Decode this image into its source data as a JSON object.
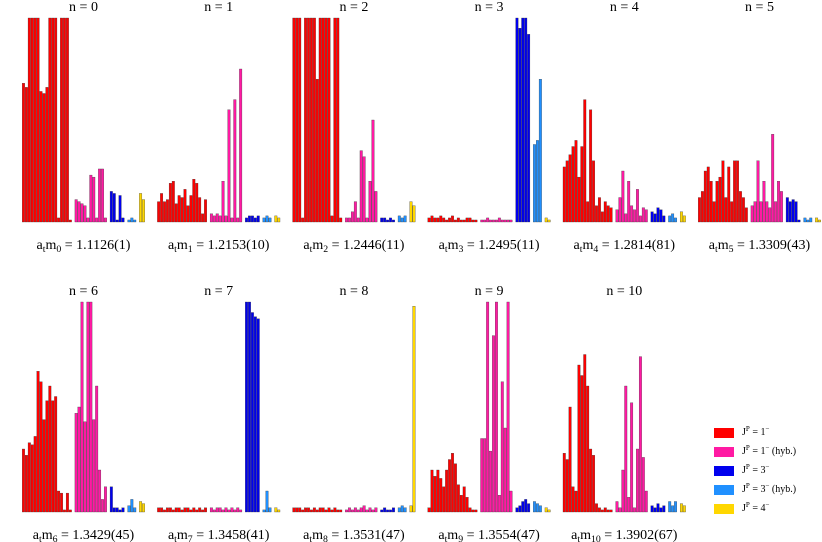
{
  "legend": [
    {
      "name": "J^P = 1^−",
      "color": "#ff0000"
    },
    {
      "name": "J^P = 1^− (hyb.)",
      "color": "#ff1aa3"
    },
    {
      "name": "J^P = 3^−",
      "color": "#0000ee"
    },
    {
      "name": "J^P = 3^− (hyb.)",
      "color": "#2090ff"
    },
    {
      "name": "J^P = 4^−",
      "color": "#ffd700"
    }
  ],
  "chart_data": [
    {
      "type": "bar",
      "title": "n = 0",
      "label": "a_tm_0 = 1.1126(1)",
      "ylim": [
        0,
        1
      ],
      "groups": [
        [
          0.68,
          0.66,
          1,
          1,
          1,
          1,
          0.64,
          0.63,
          0.66,
          1,
          1,
          1,
          0.02,
          1,
          1,
          1,
          0.01
        ],
        [
          0.11,
          0.1,
          0.09,
          0.08,
          0.02,
          0.23,
          0.22,
          0.02,
          0.26,
          0.26,
          0.02
        ],
        [
          0.15,
          0.14,
          0.01,
          0.13,
          0.02
        ],
        [
          0.01,
          0.02,
          0.01
        ],
        [
          0.14,
          0.11
        ]
      ]
    },
    {
      "type": "bar",
      "title": "n = 1",
      "label": "a_tm_1 = 1.2153(10)",
      "ylim": [
        0,
        1
      ],
      "groups": [
        [
          0.1,
          0.14,
          0.1,
          0.11,
          0.19,
          0.2,
          0.09,
          0.13,
          0.12,
          0.16,
          0.08,
          0.13,
          0.21,
          0.19,
          0.12,
          0.04,
          0.11
        ],
        [
          0.04,
          0.03,
          0.04,
          0.03,
          0.2,
          0.03,
          0.55,
          0.02,
          0.6,
          0.02,
          0.75
        ],
        [
          0.02,
          0.03,
          0.03,
          0.02,
          0.03
        ],
        [
          0.02,
          0.03,
          0.02
        ],
        [
          0.03,
          0.02
        ]
      ]
    },
    {
      "type": "bar",
      "title": "n = 2",
      "label": "a_tm_2 = 1.2446(11)",
      "ylim": [
        0,
        1
      ],
      "groups": [
        [
          1,
          1,
          1,
          0.02,
          1,
          1,
          1,
          1,
          0.7,
          1,
          1,
          1,
          1,
          0.03,
          1,
          1,
          0.02
        ],
        [
          0.02,
          0.02,
          0.05,
          0.1,
          0.02,
          0.35,
          0.32,
          0.02,
          0.2,
          0.5,
          0.15
        ],
        [
          0.02,
          0.02,
          0.01,
          0.02,
          0.01
        ],
        [
          0.03,
          0.02,
          0.03
        ],
        [
          0.1,
          0.08
        ]
      ]
    },
    {
      "type": "bar",
      "title": "n = 3",
      "label": "a_tm_3 = 1.2495(11)",
      "ylim": [
        0,
        1
      ],
      "groups": [
        [
          0.02,
          0.03,
          0.02,
          0.02,
          0.03,
          0.02,
          0.01,
          0.02,
          0.03,
          0.01,
          0.02,
          0.01,
          0.01,
          0.02,
          0.02,
          0.01,
          0.01
        ],
        [
          0.01,
          0.01,
          0.02,
          0.01,
          0.01,
          0.01,
          0.02,
          0.01,
          0.01,
          0.01,
          0.01
        ],
        [
          1,
          0.95,
          1,
          1,
          0.92
        ],
        [
          0.38,
          0.4,
          0.7
        ],
        [
          0.02,
          0.01
        ]
      ]
    },
    {
      "type": "bar",
      "title": "n = 4",
      "label": "a_tm_4 = 1.2814(81)",
      "ylim": [
        0,
        1
      ],
      "groups": [
        [
          0.27,
          0.3,
          0.33,
          0.37,
          0.4,
          0.22,
          0.37,
          0.6,
          0.1,
          0.55,
          0.3,
          0.08,
          0.12,
          0.05,
          0.1,
          0.08,
          0.07
        ],
        [
          0.06,
          0.12,
          0.25,
          0.04,
          0.2,
          0.08,
          0.06,
          0.16,
          0.03,
          0.07,
          0.06
        ],
        [
          0.05,
          0.04,
          0.07,
          0.06,
          0.03
        ],
        [
          0.03,
          0.04,
          0.02
        ],
        [
          0.05,
          0.03
        ]
      ]
    },
    {
      "type": "bar",
      "title": "n = 5",
      "label": "a_tm_5 = 1.3309(43)",
      "ylim": [
        0,
        1
      ],
      "groups": [
        [
          0.12,
          0.15,
          0.25,
          0.27,
          0.2,
          0.1,
          0.2,
          0.22,
          0.3,
          0.12,
          0.27,
          0.1,
          0.3,
          0.3,
          0.15,
          0.12,
          0.07
        ],
        [
          0.08,
          0.1,
          0.3,
          0.1,
          0.2,
          0.1,
          0.07,
          0.43,
          0.1,
          0.2,
          0.15
        ],
        [
          0.12,
          0.1,
          0.11,
          0.1,
          0.01
        ],
        [
          0.02,
          0.01,
          0.02
        ],
        [
          0.02,
          0.01
        ]
      ]
    },
    {
      "type": "bar",
      "title": "n = 6",
      "label": "a_tm_6 = 1.3429(45)",
      "ylim": [
        0,
        1
      ],
      "groups": [
        [
          0.3,
          0.27,
          0.33,
          0.32,
          0.36,
          0.67,
          0.62,
          0.44,
          0.53,
          0.6,
          0.53,
          0.55,
          0.1,
          0.09,
          0.01,
          0.09,
          0.01
        ],
        [
          0.47,
          0.5,
          1,
          0.43,
          1,
          1,
          0.44,
          0.6,
          0.2,
          0.06,
          0.12
        ],
        [
          0.12,
          0.02,
          0.02,
          0.01,
          0.02
        ],
        [
          0.03,
          0.06,
          0.02
        ],
        [
          0.05,
          0.04
        ]
      ]
    },
    {
      "type": "bar",
      "title": "n = 7",
      "label": "a_tm_7 = 1.3458(41)",
      "ylim": [
        0,
        1
      ],
      "groups": [
        [
          0.02,
          0.02,
          0.01,
          0.02,
          0.02,
          0.01,
          0.02,
          0.02,
          0.01,
          0.02,
          0.02,
          0.01,
          0.02,
          0.01,
          0.02,
          0.01,
          0.02
        ],
        [
          0.02,
          0.01,
          0.02,
          0.02,
          0.01,
          0.02,
          0.01,
          0.02,
          0.01,
          0.02,
          0.01
        ],
        [
          1,
          1,
          0.95,
          0.93,
          0.92
        ],
        [
          0.01,
          0.1,
          0.02
        ],
        [
          0.02,
          0.01
        ]
      ]
    },
    {
      "type": "bar",
      "title": "n = 8",
      "label": "a_tm_8 = 1.3531(47)",
      "ylim": [
        0,
        1
      ],
      "groups": [
        [
          0.02,
          0.02,
          0.02,
          0.01,
          0.02,
          0.02,
          0.01,
          0.02,
          0.01,
          0.02,
          0.02,
          0.01,
          0.02,
          0.01,
          0.02,
          0.01,
          0.01
        ],
        [
          0.01,
          0.02,
          0.01,
          0.02,
          0.01,
          0.02,
          0.03,
          0.01,
          0.02,
          0.01,
          0.02
        ],
        [
          0.01,
          0.02,
          0.01,
          0.01,
          0.02
        ],
        [
          0.02,
          0.03,
          0.02
        ],
        [
          0.03,
          0.98
        ]
      ]
    },
    {
      "type": "bar",
      "title": "n = 9",
      "label": "a_tm_9 = 1.3554(47)",
      "ylim": [
        0,
        1
      ],
      "groups": [
        [
          0.02,
          0.2,
          0.17,
          0.2,
          0.16,
          0.12,
          0.2,
          0.25,
          0.28,
          0.23,
          0.13,
          0.08,
          0.12,
          0.07,
          0.02,
          0.01,
          0.01
        ],
        [
          0.35,
          0.35,
          1,
          0.29,
          0.84,
          1,
          0.08,
          0.62,
          0.4,
          1,
          0.1
        ],
        [
          0.02,
          0.03,
          0.05,
          0.06,
          0.04
        ],
        [
          0.05,
          0.04,
          0.03
        ],
        [
          0.02,
          0.01
        ]
      ]
    },
    {
      "type": "bar",
      "title": "n = 10",
      "label": "a_tm_10 = 1.3902(67)",
      "ylim": [
        0,
        1
      ],
      "groups": [
        [
          0.28,
          0.25,
          0.5,
          0.12,
          0.1,
          0.7,
          0.65,
          0.75,
          0.6,
          0.3,
          0.27,
          0.04,
          0.02,
          0.01,
          0.02,
          0.01,
          0.01
        ],
        [
          0.05,
          0.02,
          0.2,
          0.6,
          0.07,
          0.52,
          0.02,
          0.3,
          0.74,
          0.26,
          0.1
        ],
        [
          0.03,
          0.02,
          0.04,
          0.02,
          0.03
        ],
        [
          0.05,
          0.03,
          0.05
        ],
        [
          0.04,
          0.03
        ]
      ]
    }
  ]
}
